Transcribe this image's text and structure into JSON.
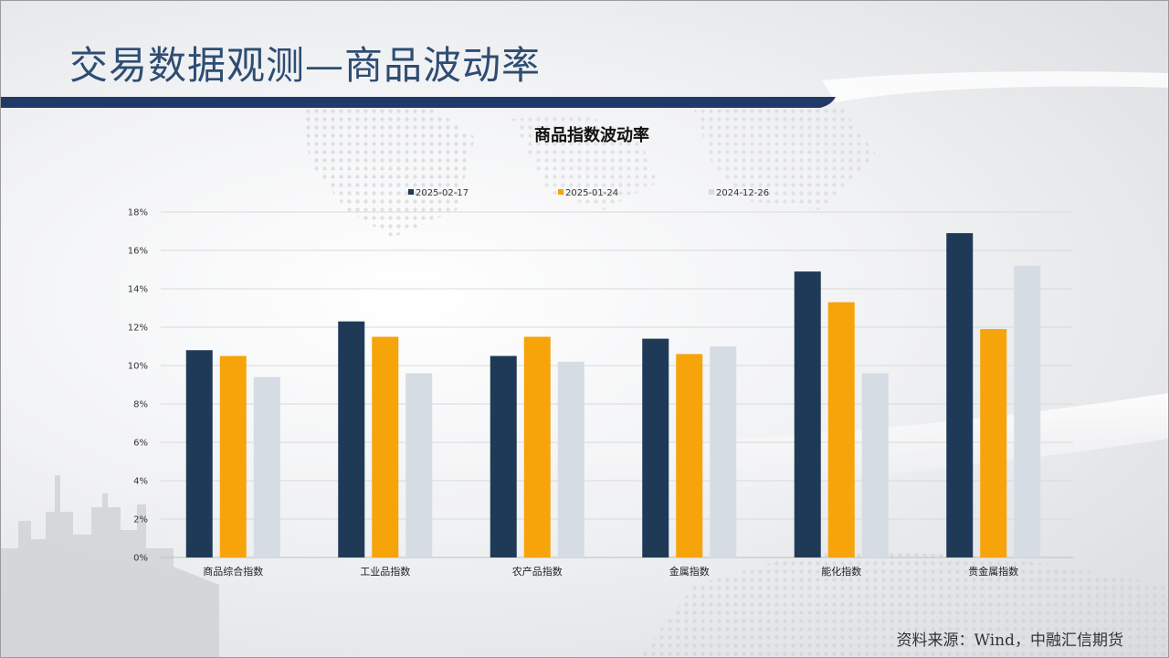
{
  "page": {
    "title": "交易数据观测—商品波动率",
    "source": "资料来源：Wind，中融汇信期货"
  },
  "colors": {
    "navy": "#1f3a56",
    "orange": "#f7a30a",
    "light": "#d6dce4",
    "grid": "#d9d9d9",
    "title_blue": "#2e4d73"
  },
  "chart_data": {
    "type": "bar",
    "title": "商品指数波动率",
    "categories": [
      "商品综合指数",
      "工业品指数",
      "农产品指数",
      "金属指数",
      "能化指数",
      "贵金属指数"
    ],
    "series": [
      {
        "name": "2025-02-17",
        "color": "#1f3a56",
        "values": [
          10.8,
          12.3,
          10.5,
          11.4,
          14.9,
          16.9
        ]
      },
      {
        "name": "2025-01-24",
        "color": "#f7a30a",
        "values": [
          10.5,
          11.5,
          11.5,
          10.6,
          13.3,
          11.9
        ]
      },
      {
        "name": "2024-12-26",
        "color": "#d6dce4",
        "values": [
          9.4,
          9.6,
          10.2,
          11.0,
          9.6,
          15.2
        ]
      }
    ],
    "y_ticks": [
      "0%",
      "2%",
      "4%",
      "6%",
      "8%",
      "10%",
      "12%",
      "14%",
      "16%",
      "18%"
    ],
    "ylim": [
      0,
      18
    ],
    "grid": true,
    "legend_position": "top"
  }
}
